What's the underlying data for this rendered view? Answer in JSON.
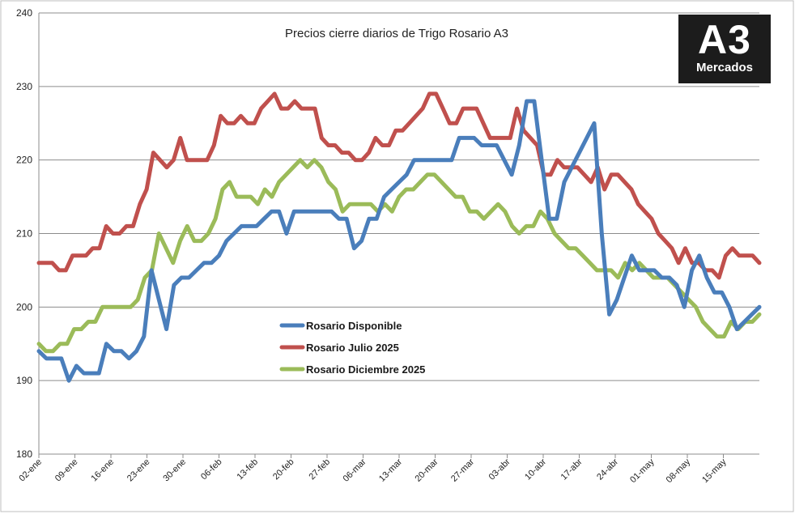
{
  "chart_data": {
    "type": "line",
    "title": "Precios cierre diarios de Trigo Rosario A3",
    "xlabel": "",
    "ylabel": "",
    "ylim": [
      180,
      240
    ],
    "yticks": [
      180,
      190,
      200,
      210,
      220,
      230,
      240
    ],
    "grid": true,
    "legend_position": "center-left",
    "xtick_labels": [
      "02-ene",
      "09-ene",
      "16-ene",
      "23-ene",
      "30-ene",
      "06-feb",
      "13-feb",
      "20-feb",
      "27-feb",
      "06-mar",
      "13-mar",
      "20-mar",
      "27-mar",
      "03-abr",
      "10-abr",
      "17-abr",
      "24-abr",
      "01-may",
      "08-may",
      "15-may"
    ],
    "series": [
      {
        "name": "Rosario Disponible",
        "color": "#4a7ebb",
        "values": [
          194,
          193,
          193,
          193,
          190,
          192,
          191,
          191,
          191,
          195,
          194,
          194,
          193,
          194,
          196,
          205,
          201,
          197,
          203,
          204,
          204,
          205,
          206,
          206,
          207,
          209,
          210,
          211,
          211,
          211,
          212,
          213,
          213,
          210,
          213,
          213,
          213,
          213,
          213,
          213,
          212,
          212,
          208,
          209,
          212,
          212,
          215,
          216,
          217,
          218,
          220,
          220,
          220,
          220,
          220,
          220,
          223,
          223,
          223,
          222,
          222,
          222,
          220,
          218,
          222,
          228,
          228,
          220,
          212,
          212,
          217,
          219,
          221,
          223,
          225,
          210,
          199,
          201,
          204,
          207,
          205,
          205,
          205,
          204,
          204,
          203,
          200,
          205,
          207,
          204,
          202,
          202,
          200,
          197,
          198,
          199,
          200
        ],
        "note": ""
      },
      {
        "name": "Rosario Julio 2025",
        "color": "#c0504d",
        "values": [
          206,
          206,
          206,
          205,
          205,
          207,
          207,
          207,
          208,
          208,
          211,
          210,
          210,
          211,
          211,
          214,
          216,
          221,
          220,
          219,
          220,
          223,
          220,
          220,
          220,
          220,
          222,
          226,
          225,
          225,
          226,
          225,
          225,
          227,
          228,
          229,
          227,
          227,
          228,
          227,
          227,
          227,
          223,
          222,
          222,
          221,
          221,
          220,
          220,
          221,
          223,
          222,
          222,
          224,
          224,
          225,
          226,
          227,
          229,
          229,
          227,
          225,
          225,
          227,
          227,
          227,
          225,
          223,
          223,
          223,
          223,
          227,
          224,
          223,
          222,
          218,
          218,
          220,
          219,
          219,
          219,
          218,
          217,
          219,
          216,
          218,
          218,
          217,
          216,
          214,
          213,
          212,
          210,
          209,
          208,
          206,
          208,
          206,
          206,
          205,
          205,
          204,
          207,
          208,
          207,
          207,
          207,
          206
        ],
        "note": ""
      },
      {
        "name": "Rosario Diciembre 2025",
        "color": "#9bbb59",
        "values": [
          195,
          194,
          194,
          195,
          195,
          197,
          197,
          198,
          198,
          200,
          200,
          200,
          200,
          200,
          201,
          204,
          205,
          210,
          208,
          206,
          209,
          211,
          209,
          209,
          210,
          212,
          216,
          217,
          215,
          215,
          215,
          214,
          216,
          215,
          217,
          218,
          219,
          220,
          219,
          220,
          219,
          217,
          216,
          213,
          214,
          214,
          214,
          214,
          213,
          214,
          213,
          215,
          216,
          216,
          217,
          218,
          218,
          217,
          216,
          215,
          215,
          213,
          213,
          212,
          213,
          214,
          213,
          211,
          210,
          211,
          211,
          213,
          212,
          210,
          209,
          208,
          208,
          207,
          206,
          205,
          205,
          205,
          204,
          206,
          205,
          206,
          205,
          204,
          204,
          204,
          203,
          202,
          201,
          200,
          198,
          197,
          196,
          196,
          198,
          197,
          198,
          198,
          199
        ],
        "note": ""
      }
    ]
  },
  "logo": {
    "line1": "A3",
    "line2": "Mercados"
  }
}
